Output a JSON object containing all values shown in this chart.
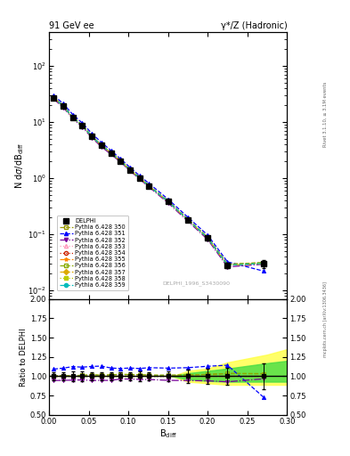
{
  "title_left": "91 GeV ee",
  "title_right": "γ*/Z (Hadronic)",
  "ylabel_main": "N dσ/dB$_{diff}$",
  "ylabel_ratio": "Ratio to DELPHI",
  "xlabel": "B$_{diff}$",
  "rivet_label": "Rivet 3.1.10, ≥ 3.1M events",
  "mcplots_label": "mcplots.cern.ch [arXiv:1306.3436]",
  "watermark": "DELPHI_1996_S3430090",
  "x_data": [
    0.006,
    0.018,
    0.03,
    0.042,
    0.054,
    0.066,
    0.078,
    0.09,
    0.102,
    0.114,
    0.126,
    0.15,
    0.175,
    0.2,
    0.225,
    0.27
  ],
  "y_data_delphi": [
    27.0,
    19.0,
    12.0,
    8.5,
    5.5,
    3.8,
    2.8,
    2.0,
    1.4,
    1.0,
    0.72,
    0.38,
    0.18,
    0.085,
    0.028,
    0.03
  ],
  "y_err_delphi": [
    1.5,
    1.0,
    0.7,
    0.5,
    0.3,
    0.2,
    0.15,
    0.1,
    0.08,
    0.06,
    0.04,
    0.025,
    0.015,
    0.008,
    0.003,
    0.005
  ],
  "pythia_seeds": [
    "350",
    "351",
    "352",
    "353",
    "354",
    "355",
    "356",
    "357",
    "358",
    "359"
  ],
  "pythia_colors": [
    "#999900",
    "#0000ff",
    "#770099",
    "#ff99bb",
    "#cc2200",
    "#ff8800",
    "#88aa00",
    "#ddaa00",
    "#bbcc00",
    "#00bbbb"
  ],
  "pythia_markers": [
    "s",
    "^",
    "v",
    "^",
    "o",
    "*",
    "s",
    "D",
    "s",
    "o"
  ],
  "pythia_linestyles": [
    "--",
    "--",
    "-.",
    ":",
    ":",
    "--",
    "--",
    "-.",
    ":",
    "--"
  ],
  "pythia_fillstyles": [
    "none",
    "full",
    "full",
    "none",
    "none",
    "full",
    "none",
    "full",
    "full",
    "full"
  ],
  "pythia_y_data": [
    [
      27.2,
      19.1,
      12.1,
      8.6,
      5.6,
      3.85,
      2.85,
      2.05,
      1.43,
      1.02,
      0.73,
      0.385,
      0.183,
      0.087,
      0.029,
      0.031
    ],
    [
      29.5,
      21.0,
      13.5,
      9.5,
      6.2,
      4.3,
      3.1,
      2.2,
      1.55,
      1.1,
      0.8,
      0.42,
      0.2,
      0.096,
      0.032,
      0.022
    ],
    [
      25.5,
      18.0,
      11.4,
      8.1,
      5.2,
      3.6,
      2.65,
      1.93,
      1.35,
      0.96,
      0.69,
      0.36,
      0.17,
      0.08,
      0.026,
      0.029
    ],
    [
      27.0,
      19.0,
      12.0,
      8.5,
      5.5,
      3.8,
      2.8,
      2.0,
      1.4,
      1.0,
      0.72,
      0.38,
      0.18,
      0.085,
      0.028,
      0.03
    ],
    [
      27.0,
      19.0,
      12.0,
      8.5,
      5.5,
      3.8,
      2.8,
      2.0,
      1.4,
      1.0,
      0.72,
      0.38,
      0.18,
      0.085,
      0.028,
      0.03
    ],
    [
      27.0,
      19.0,
      12.0,
      8.5,
      5.5,
      3.8,
      2.8,
      2.0,
      1.4,
      1.0,
      0.72,
      0.38,
      0.18,
      0.085,
      0.028,
      0.03
    ],
    [
      27.2,
      19.1,
      12.1,
      8.6,
      5.6,
      3.85,
      2.85,
      2.05,
      1.43,
      1.02,
      0.73,
      0.385,
      0.183,
      0.087,
      0.029,
      0.031
    ],
    [
      27.0,
      19.0,
      12.0,
      8.5,
      5.5,
      3.8,
      2.8,
      2.0,
      1.4,
      1.0,
      0.72,
      0.38,
      0.18,
      0.085,
      0.028,
      0.03
    ],
    [
      27.0,
      19.0,
      12.0,
      8.5,
      5.5,
      3.8,
      2.8,
      2.0,
      1.4,
      1.0,
      0.72,
      0.38,
      0.18,
      0.085,
      0.028,
      0.03
    ],
    [
      27.0,
      19.0,
      12.0,
      8.5,
      5.5,
      3.8,
      2.8,
      2.0,
      1.4,
      1.0,
      0.72,
      0.38,
      0.18,
      0.085,
      0.028,
      0.03
    ]
  ],
  "xlim": [
    0.0,
    0.3
  ],
  "ylim_main": [
    0.007,
    400
  ],
  "ylim_ratio": [
    0.5,
    2.0
  ],
  "background_color": "#ffffff"
}
